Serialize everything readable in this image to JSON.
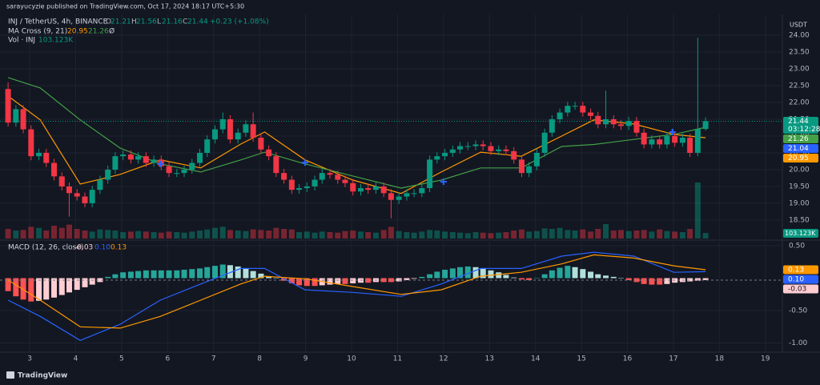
{
  "header": "sarayucyzie published on TradingView.com, Oct 17, 2024 18:17 UTC+5:30",
  "footer": "TradingView",
  "chart_data": {
    "type": "candlestick",
    "symbol": "INJ / TetherUS, 4h, BINANCE",
    "ohlc_letters": [
      "O",
      "H",
      "L",
      "C"
    ],
    "change": "+0.23 (+1.08%)",
    "currency": "USDT",
    "countdown": "03:12:28",
    "x": [
      2.53,
      2.7,
      2.86,
      3.03,
      3.2,
      3.36,
      3.53,
      3.7,
      3.86,
      4.03,
      4.2,
      4.36,
      4.53,
      4.7,
      4.86,
      5.03,
      5.2,
      5.36,
      5.53,
      5.7,
      5.86,
      6.03,
      6.2,
      6.36,
      6.53,
      6.7,
      6.86,
      7.03,
      7.2,
      7.36,
      7.53,
      7.7,
      7.86,
      8.03,
      8.2,
      8.36,
      8.53,
      8.7,
      8.86,
      9.03,
      9.2,
      9.36,
      9.53,
      9.7,
      9.86,
      10.03,
      10.2,
      10.36,
      10.53,
      10.7,
      10.86,
      11.03,
      11.2,
      11.36,
      11.53,
      11.7,
      11.86,
      12.03,
      12.2,
      12.36,
      12.53,
      12.7,
      12.86,
      13.03,
      13.2,
      13.36,
      13.53,
      13.7,
      13.86,
      14.03,
      14.2,
      14.36,
      14.53,
      14.7,
      14.86,
      15.03,
      15.2,
      15.36,
      15.53,
      15.7,
      15.86,
      16.03,
      16.2,
      16.36,
      16.53,
      16.7,
      16.86,
      17.03,
      17.2,
      17.36,
      17.53,
      17.7
    ],
    "open": [
      22.4,
      21.4,
      21.8,
      21.2,
      20.4,
      20.5,
      20.2,
      19.8,
      19.5,
      19.3,
      19.2,
      19.0,
      19.4,
      19.7,
      20.0,
      20.4,
      20.45,
      20.3,
      20.4,
      20.2,
      20.3,
      20.1,
      19.9,
      19.9,
      20.0,
      20.2,
      20.5,
      20.9,
      21.2,
      21.5,
      20.9,
      21.1,
      21.35,
      20.95,
      20.6,
      20.4,
      19.9,
      19.7,
      19.4,
      19.45,
      19.5,
      19.7,
      19.9,
      19.85,
      19.7,
      19.6,
      19.35,
      19.45,
      19.4,
      19.5,
      19.3,
      19.1,
      19.2,
      19.3,
      19.3,
      19.45,
      20.3,
      20.4,
      20.5,
      20.6,
      20.7,
      20.7,
      20.75,
      20.7,
      20.55,
      20.6,
      20.55,
      20.3,
      19.9,
      20.1,
      20.5,
      21.1,
      21.5,
      21.7,
      21.9,
      21.9,
      21.7,
      21.6,
      21.35,
      21.5,
      21.35,
      21.3,
      21.45,
      21.1,
      20.75,
      20.9,
      20.75,
      21.0,
      20.8,
      20.95,
      20.5,
      21.21
    ],
    "high": [
      22.6,
      21.92,
      21.92,
      21.32,
      20.62,
      20.62,
      20.32,
      19.92,
      19.62,
      19.42,
      19.32,
      19.52,
      19.82,
      20.12,
      20.52,
      20.57,
      20.57,
      20.52,
      20.52,
      20.42,
      20.42,
      20.22,
      20.02,
      20.12,
      20.32,
      20.62,
      21.02,
      21.32,
      21.7,
      21.62,
      21.22,
      21.47,
      21.7,
      21.07,
      20.72,
      20.52,
      20.02,
      19.82,
      19.57,
      19.62,
      19.82,
      20.02,
      20.02,
      19.97,
      19.82,
      19.72,
      19.57,
      19.57,
      19.62,
      19.62,
      19.42,
      19.32,
      19.42,
      19.42,
      19.57,
      20.42,
      20.52,
      20.62,
      20.72,
      20.82,
      20.82,
      20.87,
      20.87,
      20.82,
      20.72,
      20.72,
      20.67,
      20.42,
      20.22,
      20.62,
      21.22,
      21.62,
      21.82,
      22.02,
      22.02,
      22.02,
      21.82,
      21.72,
      22.35,
      21.62,
      21.47,
      21.57,
      21.57,
      21.22,
      21.02,
      21.02,
      21.12,
      21.12,
      21.07,
      21.07,
      23.93,
      21.56
    ],
    "low": [
      21.28,
      21.28,
      21.08,
      20.28,
      20.28,
      20.08,
      19.68,
      19.38,
      18.6,
      19.08,
      18.88,
      18.88,
      19.28,
      19.58,
      19.88,
      20.28,
      20.18,
      20.18,
      20.08,
      20.08,
      19.98,
      19.78,
      19.78,
      19.78,
      19.88,
      20.08,
      20.38,
      20.78,
      21.08,
      20.78,
      20.78,
      20.98,
      20.83,
      20.48,
      20.28,
      19.78,
      19.58,
      19.28,
      19.28,
      19.33,
      19.38,
      19.58,
      19.73,
      19.58,
      19.48,
      19.23,
      19.23,
      19.28,
      19.28,
      19.18,
      18.55,
      18.98,
      19.08,
      19.18,
      19.18,
      19.33,
      20.18,
      20.28,
      20.38,
      20.48,
      20.58,
      20.58,
      20.58,
      20.43,
      20.43,
      20.43,
      20.18,
      19.78,
      19.78,
      19.98,
      20.38,
      20.98,
      21.38,
      21.58,
      21.78,
      21.58,
      21.48,
      21.23,
      21.23,
      21.23,
      21.18,
      21.18,
      20.98,
      20.63,
      20.63,
      20.63,
      20.63,
      20.68,
      20.68,
      20.38,
      20.4,
      21.16
    ],
    "close": [
      21.4,
      21.8,
      21.2,
      20.4,
      20.5,
      20.2,
      19.8,
      19.5,
      19.3,
      19.2,
      19.0,
      19.4,
      19.7,
      20.0,
      20.4,
      20.45,
      20.3,
      20.4,
      20.2,
      20.3,
      20.1,
      19.9,
      19.9,
      20.0,
      20.2,
      20.5,
      20.9,
      21.2,
      21.5,
      20.9,
      21.1,
      21.35,
      20.95,
      20.6,
      20.4,
      19.9,
      19.7,
      19.4,
      19.45,
      19.5,
      19.7,
      19.9,
      19.85,
      19.7,
      19.6,
      19.35,
      19.45,
      19.4,
      19.5,
      19.3,
      19.1,
      19.2,
      19.3,
      19.3,
      19.45,
      20.3,
      20.4,
      20.5,
      20.6,
      20.7,
      20.7,
      20.75,
      20.7,
      20.55,
      20.6,
      20.55,
      20.3,
      19.9,
      20.1,
      20.5,
      21.1,
      21.5,
      21.7,
      21.9,
      21.9,
      21.7,
      21.6,
      21.35,
      21.5,
      21.35,
      21.3,
      21.45,
      21.1,
      20.75,
      20.9,
      20.75,
      21.0,
      20.8,
      20.95,
      20.5,
      21.21,
      21.44
    ],
    "up_color": "#089981",
    "down_color": "#f23645",
    "xlim": [
      2.354,
      19.37
    ],
    "xticks": [
      3,
      4,
      5,
      6,
      7,
      8,
      9,
      10,
      11,
      12,
      13,
      14,
      15,
      16,
      17,
      18,
      19
    ],
    "ylim": [
      17.95,
      24.62
    ],
    "yticks": [
      {
        "value": 18.5,
        "label": "18.50"
      },
      {
        "value": 19,
        "label": "19.00"
      },
      {
        "value": 19.5,
        "label": "19.50"
      },
      {
        "value": 20,
        "label": "20.00"
      },
      {
        "value": 20.5,
        "label": "20.50"
      },
      {
        "value": 21,
        "label": "21.00"
      },
      {
        "value": 21.5,
        "label": "21.50"
      },
      {
        "value": 22,
        "label": "22.00"
      },
      {
        "value": 22.5,
        "label": "22.50"
      },
      {
        "value": 23,
        "label": "23.00"
      },
      {
        "value": 23.5,
        "label": "23.50"
      },
      {
        "value": 24,
        "label": "24.00"
      }
    ],
    "grid": true,
    "ma": {
      "name": "MA Cross (9, 21)",
      "flag": "Ø",
      "x": [
        2.53,
        3.23,
        4.1,
        4.97,
        5.84,
        6.72,
        7.59,
        8.11,
        8.99,
        10.03,
        11.08,
        11.95,
        12.81,
        13.69,
        14.57,
        15.27,
        16.14,
        17.01,
        17.7
      ],
      "series": [
        {
          "color": "#ff9800",
          "values": [
            22.19,
            21.48,
            19.57,
            19.86,
            20.29,
            20.05,
            20.76,
            21.12,
            20.29,
            19.69,
            19.29,
            19.93,
            20.52,
            20.4,
            21.0,
            21.48,
            21.36,
            21.05,
            20.95
          ]
        },
        {
          "color": "#43a047",
          "values": [
            22.74,
            22.43,
            21.48,
            20.64,
            20.17,
            19.93,
            20.29,
            20.52,
            20.17,
            19.81,
            19.45,
            19.69,
            20.05,
            20.05,
            20.69,
            20.75,
            20.9,
            21.05,
            21.26
          ]
        }
      ]
    },
    "crosses": {
      "color": "#2962ff",
      "x": [
        5.84,
        8.99,
        12.0,
        16.98
      ],
      "y": [
        20.17,
        20.21,
        19.64,
        21.12
      ]
    },
    "marker_price": 21.04,
    "volume": {
      "name": "Vol · INJ",
      "values": [
        180,
        150,
        160,
        220,
        200,
        150,
        240,
        200,
        260,
        180,
        150,
        130,
        170,
        160,
        150,
        120,
        130,
        140,
        130,
        120,
        110,
        130,
        120,
        110,
        130,
        150,
        170,
        200,
        220,
        160,
        150,
        140,
        170,
        160,
        150,
        200,
        180,
        170,
        120,
        130,
        110,
        130,
        120,
        110,
        140,
        150,
        130,
        120,
        110,
        160,
        220,
        140,
        120,
        110,
        130,
        160,
        150,
        130,
        120,
        110,
        100,
        120,
        110,
        100,
        110,
        120,
        150,
        170,
        130,
        140,
        190,
        180,
        200,
        160,
        150,
        170,
        130,
        180,
        270,
        150,
        160,
        140,
        150,
        160,
        130,
        170,
        140,
        130,
        120,
        180,
        1050,
        103.123
      ],
      "value_labels": [
        null,
        null,
        null,
        null,
        null,
        null,
        null,
        null,
        null,
        null,
        null,
        null,
        null,
        null,
        null,
        null,
        null,
        null,
        null,
        null,
        null,
        null,
        null,
        null,
        null,
        null,
        null,
        null,
        null,
        null,
        null,
        null,
        null,
        null,
        null,
        null,
        null,
        null,
        null,
        null,
        null,
        null,
        null,
        null,
        null,
        null,
        null,
        null,
        null,
        null,
        null,
        null,
        null,
        null,
        null,
        null,
        null,
        null,
        null,
        null,
        null,
        null,
        null,
        null,
        null,
        null,
        null,
        null,
        null,
        null,
        null,
        null,
        null,
        null,
        null,
        null,
        null,
        null,
        null,
        null,
        null,
        null,
        null,
        null,
        null,
        null,
        null,
        null,
        null,
        null,
        null,
        "103.123K"
      ]
    },
    "macd": {
      "name": "MACD (12, 26, close)",
      "ylim": [
        -1.142,
        0.562
      ],
      "yticks": [
        {
          "value": 0.5,
          "label": "0.50"
        },
        {
          "value": -0.5,
          "label": "-0.50"
        },
        {
          "value": -1,
          "label": "-1.00"
        }
      ],
      "hist_colors": [
        "#26a69a",
        "#b2dfdb",
        "#ff5252",
        "#ffcdd2"
      ],
      "histogram": [
        -0.2,
        -0.28,
        -0.33,
        -0.36,
        -0.35,
        -0.33,
        -0.3,
        -0.26,
        -0.22,
        -0.18,
        -0.14,
        -0.1,
        -0.06,
        0.02,
        0.06,
        0.09,
        0.1,
        0.11,
        0.12,
        0.12,
        0.12,
        0.12,
        0.12,
        0.13,
        0.14,
        0.15,
        0.17,
        0.19,
        0.21,
        0.2,
        0.18,
        0.15,
        0.11,
        0.07,
        0.03,
        0.0,
        -0.04,
        -0.08,
        -0.11,
        -0.12,
        -0.12,
        -0.11,
        -0.1,
        -0.09,
        -0.09,
        -0.08,
        -0.07,
        -0.07,
        -0.06,
        -0.06,
        -0.06,
        -0.05,
        -0.03,
        -0.01,
        0.02,
        0.06,
        0.1,
        0.13,
        0.15,
        0.17,
        0.18,
        0.17,
        0.15,
        0.12,
        0.09,
        0.05,
        0.01,
        -0.02,
        -0.03,
        0.0,
        0.06,
        0.12,
        0.16,
        0.19,
        0.17,
        0.14,
        0.1,
        0.06,
        0.04,
        0.02,
        0.0,
        -0.03,
        -0.06,
        -0.09,
        -0.1,
        -0.1,
        -0.09,
        -0.07,
        -0.06,
        -0.05,
        -0.04,
        -0.03
      ],
      "x": [
        2.53,
        3.23,
        4.1,
        4.97,
        5.84,
        6.72,
        7.59,
        8.11,
        8.99,
        10.03,
        11.08,
        11.95,
        12.81,
        13.69,
        14.57,
        15.27,
        16.14,
        17.01,
        17.7
      ],
      "series": [
        {
          "color": "#2962ff",
          "values": [
            -0.34,
            -0.59,
            -0.96,
            -0.71,
            -0.34,
            -0.09,
            0.15,
            0.15,
            -0.18,
            -0.22,
            -0.28,
            -0.09,
            0.15,
            0.15,
            0.34,
            0.4,
            0.34,
            0.09,
            0.1
          ],
          "value_labels": [
            null,
            null,
            null,
            null,
            null,
            null,
            null,
            null,
            null,
            null,
            null,
            null,
            null,
            null,
            null,
            null,
            null,
            null,
            "0.10"
          ]
        },
        {
          "color": "#ff9800",
          "values": [
            -0.03,
            -0.34,
            -0.75,
            -0.77,
            -0.59,
            -0.34,
            -0.09,
            0.03,
            -0.01,
            -0.13,
            -0.25,
            -0.18,
            0.03,
            0.09,
            0.22,
            0.36,
            0.31,
            0.19,
            0.13
          ]
        }
      ]
    }
  }
}
